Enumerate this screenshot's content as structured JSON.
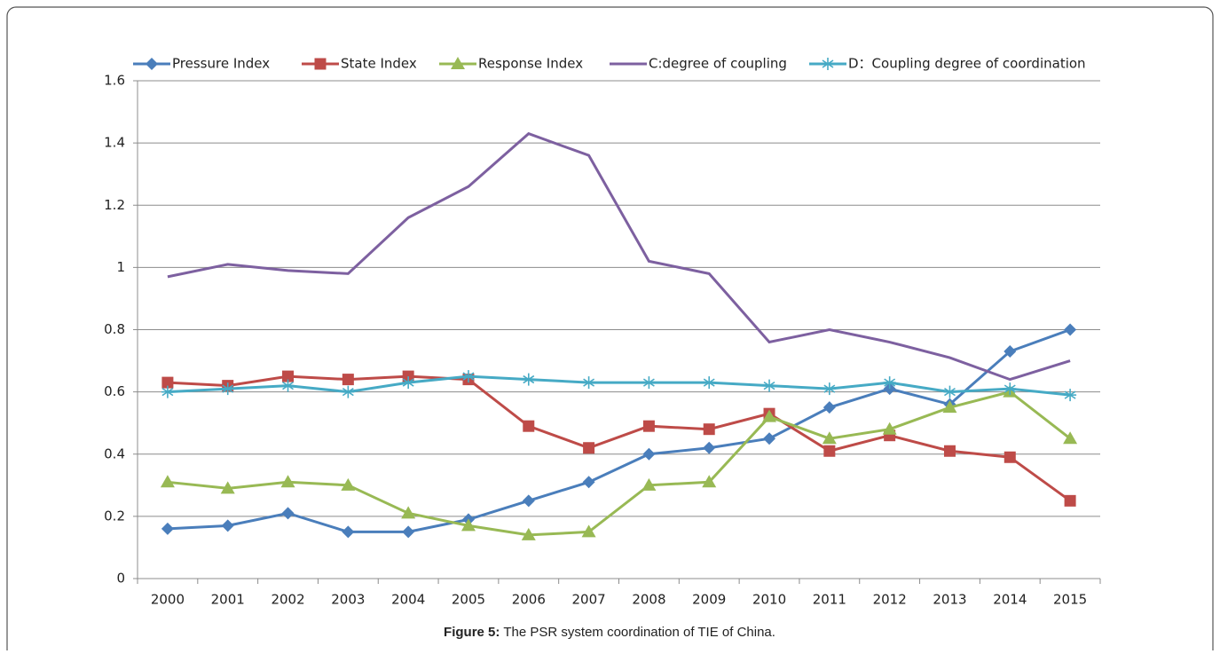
{
  "chart_data": {
    "type": "line",
    "caption_label": "Figure 5:",
    "caption_text": "The PSR system coordination of TIE of China.",
    "categories": [
      "2000",
      "2001",
      "2002",
      "2003",
      "2004",
      "2005",
      "2006",
      "2007",
      "2008",
      "2009",
      "2010",
      "2011",
      "2012",
      "2013",
      "2014",
      "2015"
    ],
    "ylim": [
      0,
      1.6
    ],
    "yticks": [
      0,
      0.2,
      0.4,
      0.6,
      0.8,
      1,
      1.2,
      1.4,
      1.6
    ],
    "grid": true,
    "legend": "top",
    "series": [
      {
        "name": "Pressure Index",
        "color": "#4a7ebb",
        "marker": "diamond",
        "values": [
          0.16,
          0.17,
          0.21,
          0.15,
          0.15,
          0.19,
          0.25,
          0.31,
          0.4,
          0.42,
          0.45,
          0.55,
          0.61,
          0.56,
          0.73,
          0.8
        ]
      },
      {
        "name": "State Index",
        "color": "#be4b48",
        "marker": "square",
        "values": [
          0.63,
          0.62,
          0.65,
          0.64,
          0.65,
          0.64,
          0.49,
          0.42,
          0.49,
          0.48,
          0.53,
          0.41,
          0.46,
          0.41,
          0.39,
          0.25
        ]
      },
      {
        "name": "Response Index",
        "color": "#98b954",
        "marker": "triangle",
        "values": [
          0.31,
          0.29,
          0.31,
          0.3,
          0.21,
          0.17,
          0.14,
          0.15,
          0.3,
          0.31,
          0.52,
          0.45,
          0.48,
          0.55,
          0.6,
          0.45
        ]
      },
      {
        "name": "C:degree of coupling",
        "color": "#7d60a0",
        "marker": "none",
        "values": [
          0.97,
          1.01,
          0.99,
          0.98,
          1.16,
          1.26,
          1.43,
          1.36,
          1.02,
          0.98,
          0.76,
          0.8,
          0.76,
          0.71,
          0.64,
          0.7
        ]
      },
      {
        "name": "D：Coupling degree of coordination",
        "color": "#46aac5",
        "marker": "asterisk",
        "values": [
          0.6,
          0.61,
          0.62,
          0.6,
          0.63,
          0.65,
          0.64,
          0.63,
          0.63,
          0.63,
          0.62,
          0.61,
          0.63,
          0.6,
          0.61,
          0.59
        ]
      }
    ]
  }
}
